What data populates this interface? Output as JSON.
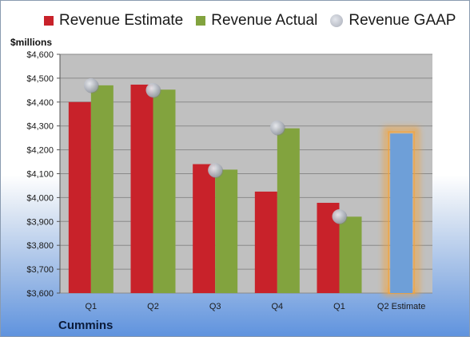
{
  "legend": {
    "estimate": "Revenue Estimate",
    "actual": "Revenue Actual",
    "gaap": "Revenue GAAP"
  },
  "unit_label": "$millions",
  "company": "Cummins",
  "colors": {
    "estimate": "#c8222a",
    "actual": "#82a33e",
    "gaap": "#b8bcc6",
    "projected": "#6e9fd8",
    "projected_glow": "#f2a33a",
    "plot_bg": "#c0c0c0"
  },
  "chart_data": {
    "type": "bar",
    "categories": [
      "Q1",
      "Q2",
      "Q3",
      "Q4",
      "Q1",
      "Q2 Estimate"
    ],
    "series": [
      {
        "name": "Revenue Estimate",
        "values": [
          4400,
          4473,
          4140,
          4025,
          3978,
          null
        ]
      },
      {
        "name": "Revenue Actual",
        "values": [
          4470,
          4452,
          4117,
          4290,
          3920,
          null
        ]
      },
      {
        "name": "Revenue GAAP",
        "values": [
          4470,
          4450,
          4115,
          4293,
          3921,
          null
        ]
      }
    ],
    "projection": {
      "category": "Q2 Estimate",
      "value": 4268
    },
    "ylim": [
      3600,
      4600
    ],
    "yticks": [
      3600,
      3700,
      3800,
      3900,
      4000,
      4100,
      4200,
      4300,
      4400,
      4500,
      4600
    ],
    "ytick_labels": [
      "$3,600",
      "$3,700",
      "$3,800",
      "$3,900",
      "$4,000",
      "$4,100",
      "$4,200",
      "$4,300",
      "$4,400",
      "$4,500",
      "$4,600"
    ],
    "ylabel": "$millions",
    "legend_position": "top",
    "grid": true
  }
}
